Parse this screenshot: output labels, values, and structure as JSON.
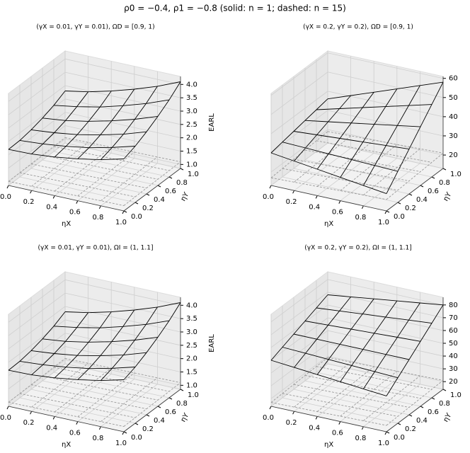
{
  "title": "ρ0 = −0.4, ρ1 = −0.8   (solid: n = 1; dashed: n = 15)",
  "chart_data": [
    {
      "type": "surface3d",
      "title": "(γX = 0.01, γY = 0.01), ΩD = [0.9, 1)",
      "xlabel": "ηX",
      "ylabel": "ηY",
      "zlabel": "EARL",
      "x": [
        0,
        0.2,
        0.4,
        0.6,
        0.8,
        1
      ],
      "y": [
        0,
        0.2,
        0.4,
        0.6,
        0.8,
        1
      ],
      "xlim": [
        0,
        1
      ],
      "ylim": [
        0,
        1
      ],
      "zlim": [
        0.85,
        4.3
      ],
      "xticks": [
        {
          "value": 0,
          "label": "0.0"
        },
        0.2,
        0.4,
        0.6,
        0.8,
        {
          "value": 1,
          "label": "1.0"
        }
      ],
      "yticks": [
        {
          "value": 0,
          "label": "0.0"
        },
        0.2,
        0.4,
        0.6,
        0.8,
        {
          "value": 1,
          "label": "1.0"
        }
      ],
      "zticks": [
        {
          "value": 1,
          "label": "1.0"
        },
        1.5,
        {
          "value": 2,
          "label": "2.0"
        },
        2.5,
        {
          "value": 3,
          "label": "3.0"
        },
        3.5,
        {
          "value": 4,
          "label": "4.0"
        }
      ],
      "grid": true,
      "series": [
        {
          "linestyle": "solid",
          "color": "#000000",
          "z": [
            [
              2.2,
              2.22,
              2.3,
              2.42,
              2.58,
              2.8
            ],
            [
              2.22,
              2.28,
              2.38,
              2.52,
              2.72,
              2.96
            ],
            [
              2.3,
              2.38,
              2.5,
              2.68,
              2.9,
              3.18
            ],
            [
              2.42,
              2.52,
              2.68,
              2.89,
              3.14,
              3.44
            ],
            [
              2.58,
              2.72,
              2.9,
              3.14,
              3.41,
              3.74
            ],
            [
              2.8,
              2.96,
              3.18,
              3.44,
              3.74,
              4.1
            ]
          ]
        },
        {
          "linestyle": "dashed",
          "color": "#9a9a9a",
          "z": [
            [
              1.0,
              1.01,
              1.02,
              1.03,
              1.04,
              1.05
            ],
            [
              1.01,
              1.02,
              1.03,
              1.04,
              1.05,
              1.06
            ],
            [
              1.02,
              1.03,
              1.04,
              1.05,
              1.06,
              1.07
            ],
            [
              1.03,
              1.04,
              1.05,
              1.06,
              1.07,
              1.08
            ],
            [
              1.04,
              1.05,
              1.06,
              1.07,
              1.08,
              1.09
            ],
            [
              1.05,
              1.06,
              1.07,
              1.08,
              1.09,
              1.1
            ]
          ]
        }
      ]
    },
    {
      "type": "surface3d",
      "title": "(γX = 0.2, γY = 0.2), ΩD = [0.9, 1)",
      "xlabel": "ηX",
      "ylabel": "ηY",
      "x": [
        0,
        0.2,
        0.4,
        0.6,
        0.8,
        1
      ],
      "y": [
        0,
        0.2,
        0.4,
        0.6,
        0.8,
        1
      ],
      "xlim": [
        0,
        1
      ],
      "ylim": [
        0,
        1
      ],
      "zlim": [
        13,
        61
      ],
      "xticks": [
        {
          "value": 0,
          "label": "0.0"
        },
        0.2,
        0.4,
        0.6,
        0.8,
        {
          "value": 1,
          "label": "1.0"
        }
      ],
      "yticks": [
        {
          "value": 0,
          "label": "0.0"
        },
        0.2,
        0.4,
        0.6,
        0.8,
        {
          "value": 1,
          "label": "1.0"
        }
      ],
      "zticks": [
        20,
        30,
        40,
        50,
        60
      ],
      "grid": true,
      "series": [
        {
          "linestyle": "solid",
          "color": "#000000",
          "z": [
            [
              30,
              28.4,
              26.8,
              25.2,
              23.6,
              22
            ],
            [
              31.2,
              30.8,
              30.4,
              30,
              29.6,
              29.2
            ],
            [
              32.4,
              33.2,
              34,
              34.8,
              35.6,
              36.4
            ],
            [
              33.6,
              35.6,
              37.6,
              39.6,
              41.6,
              43.6
            ],
            [
              34.8,
              38,
              41.2,
              44.4,
              47.6,
              50.8
            ],
            [
              36,
              40.4,
              44.8,
              49.2,
              53.6,
              58
            ]
          ]
        },
        {
          "linestyle": "dashed",
          "color": "#9a9a9a",
          "z": [
            [
              17,
              17.4,
              17.8,
              18.2,
              18.6,
              19
            ],
            [
              17.4,
              17.8,
              18.2,
              18.6,
              19,
              19.4
            ],
            [
              17.8,
              18.2,
              18.6,
              19,
              19.4,
              19.8
            ],
            [
              18.2,
              18.6,
              19,
              19.4,
              19.8,
              20.2
            ],
            [
              18.6,
              19,
              19.4,
              19.8,
              20.2,
              20.6
            ],
            [
              19,
              19.4,
              19.8,
              20.2,
              20.6,
              21
            ]
          ]
        }
      ]
    },
    {
      "type": "surface3d",
      "title": "(γX = 0.01, γY = 0.01), ΩI = (1, 1.1]",
      "xlabel": "ηX",
      "ylabel": "ηY",
      "zlabel": "EARL",
      "x": [
        0,
        0.2,
        0.4,
        0.6,
        0.8,
        1
      ],
      "y": [
        0,
        0.2,
        0.4,
        0.6,
        0.8,
        1
      ],
      "xlim": [
        0,
        1
      ],
      "ylim": [
        0,
        1
      ],
      "zlim": [
        0.85,
        4.3
      ],
      "xticks": [
        {
          "value": 0,
          "label": "0.0"
        },
        0.2,
        0.4,
        0.6,
        0.8,
        {
          "value": 1,
          "label": "1.0"
        }
      ],
      "yticks": [
        {
          "value": 0,
          "label": "0.0"
        },
        0.2,
        0.4,
        0.6,
        0.8,
        {
          "value": 1,
          "label": "1.0"
        }
      ],
      "zticks": [
        {
          "value": 1,
          "label": "1.0"
        },
        1.5,
        {
          "value": 2,
          "label": "2.0"
        },
        2.5,
        {
          "value": 3,
          "label": "3.0"
        },
        3.5,
        {
          "value": 4,
          "label": "4.0"
        }
      ],
      "grid": true,
      "series": [
        {
          "linestyle": "solid",
          "color": "#000000",
          "z": [
            [
              2.2,
              2.22,
              2.3,
              2.42,
              2.58,
              2.8
            ],
            [
              2.22,
              2.28,
              2.38,
              2.52,
              2.72,
              2.96
            ],
            [
              2.3,
              2.38,
              2.5,
              2.68,
              2.9,
              3.18
            ],
            [
              2.42,
              2.52,
              2.68,
              2.89,
              3.14,
              3.44
            ],
            [
              2.58,
              2.72,
              2.9,
              3.14,
              3.41,
              3.74
            ],
            [
              2.8,
              2.96,
              3.18,
              3.44,
              3.74,
              4.1
            ]
          ]
        },
        {
          "linestyle": "dashed",
          "color": "#9a9a9a",
          "z": [
            [
              1.0,
              1.01,
              1.02,
              1.03,
              1.04,
              1.05
            ],
            [
              1.01,
              1.02,
              1.03,
              1.04,
              1.05,
              1.06
            ],
            [
              1.02,
              1.03,
              1.04,
              1.05,
              1.06,
              1.07
            ],
            [
              1.03,
              1.04,
              1.05,
              1.06,
              1.07,
              1.08
            ],
            [
              1.04,
              1.05,
              1.06,
              1.07,
              1.08,
              1.09
            ],
            [
              1.05,
              1.06,
              1.07,
              1.08,
              1.09,
              1.1
            ]
          ]
        }
      ]
    },
    {
      "type": "surface3d",
      "title": "(γX = 0.2, γY = 0.2), ΩI = (1, 1.1]",
      "xlabel": "ηX",
      "ylabel": "ηY",
      "x": [
        0,
        0.2,
        0.4,
        0.6,
        0.8,
        1
      ],
      "y": [
        0,
        0.2,
        0.4,
        0.6,
        0.8,
        1
      ],
      "xlim": [
        0,
        1
      ],
      "ylim": [
        0,
        1
      ],
      "zlim": [
        14,
        86
      ],
      "xticks": [
        {
          "value": 0,
          "label": "0.0"
        },
        0.2,
        0.4,
        0.6,
        0.8,
        {
          "value": 1,
          "label": "1.0"
        }
      ],
      "yticks": [
        {
          "value": 0,
          "label": "0.0"
        },
        0.2,
        0.4,
        0.6,
        0.8,
        {
          "value": 1,
          "label": "1.0"
        }
      ],
      "zticks": [
        20,
        30,
        40,
        50,
        60,
        70,
        80
      ],
      "grid": true,
      "series": [
        {
          "linestyle": "solid",
          "color": "#000000",
          "z": [
            [
              50,
              48.4,
              46.8,
              45.2,
              43.6,
              42
            ],
            [
              53.6,
              52.8,
              52,
              51.2,
              50.4,
              49.6
            ],
            [
              57.2,
              57.2,
              57.2,
              57.2,
              57.2,
              57.2
            ],
            [
              60.8,
              61.6,
              62.4,
              63.2,
              64,
              64.8
            ],
            [
              64.4,
              66,
              67.6,
              69.2,
              70.8,
              72.4
            ],
            [
              68,
              70.4,
              72.8,
              75.2,
              77.6,
              80
            ]
          ]
        },
        {
          "linestyle": "dashed",
          "color": "#9a9a9a",
          "z": [
            [
              17,
              17.4,
              17.8,
              18.2,
              18.6,
              19
            ],
            [
              17.4,
              17.8,
              18.2,
              18.6,
              19,
              19.4
            ],
            [
              17.8,
              18.2,
              18.6,
              19,
              19.4,
              19.8
            ],
            [
              18.2,
              18.6,
              19,
              19.4,
              19.8,
              20.2
            ],
            [
              18.6,
              19,
              19.4,
              19.8,
              20.2,
              20.6
            ],
            [
              19,
              19.4,
              19.8,
              20.2,
              20.6,
              21
            ]
          ]
        }
      ]
    }
  ]
}
